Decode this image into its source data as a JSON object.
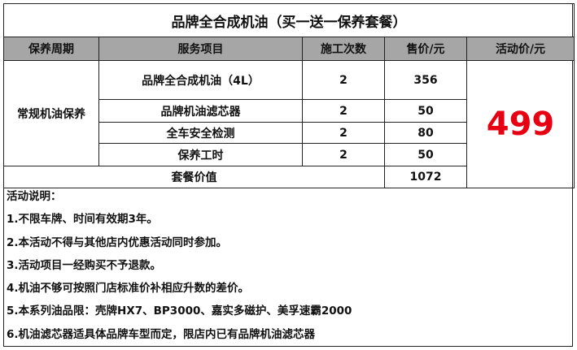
{
  "title": "品牌全合成机油（买一送一保养套餐）",
  "headers": [
    "保养周期",
    "服务项目",
    "施工次数",
    "售价/元",
    "活动价/元"
  ],
  "period": "常规机油保养",
  "rows": [
    {
      "item": "品牌全合成机油（4L）",
      "count": "2",
      "price": "356"
    },
    {
      "item": "品牌机油滤芯器",
      "count": "2",
      "price": "50"
    },
    {
      "item": "全车安全检测",
      "count": "2",
      "price": "80"
    },
    {
      "item": "保养工时",
      "count": "2",
      "price": "50"
    }
  ],
  "total_label": "套餐价值",
  "total_value": "1072",
  "promo_price": "499",
  "promo_color": "#e60012",
  "notes_title": "活动说明：",
  "notes": [
    "1.不限车牌、时间有效期3年。",
    "2.本活动不得与其他店内优惠活动同时参加。",
    "3.活动项目一经购买不予退款。",
    "4.机油不够可按照门店标准价补相应升数的差价。",
    "5.本系列油品限：壳牌HX7、BP3000、嘉实多磁护、美孚速霸2000",
    "6.机油滤芯器适具体品牌车型而定，限店内已有品牌机油滤芯器"
  ]
}
